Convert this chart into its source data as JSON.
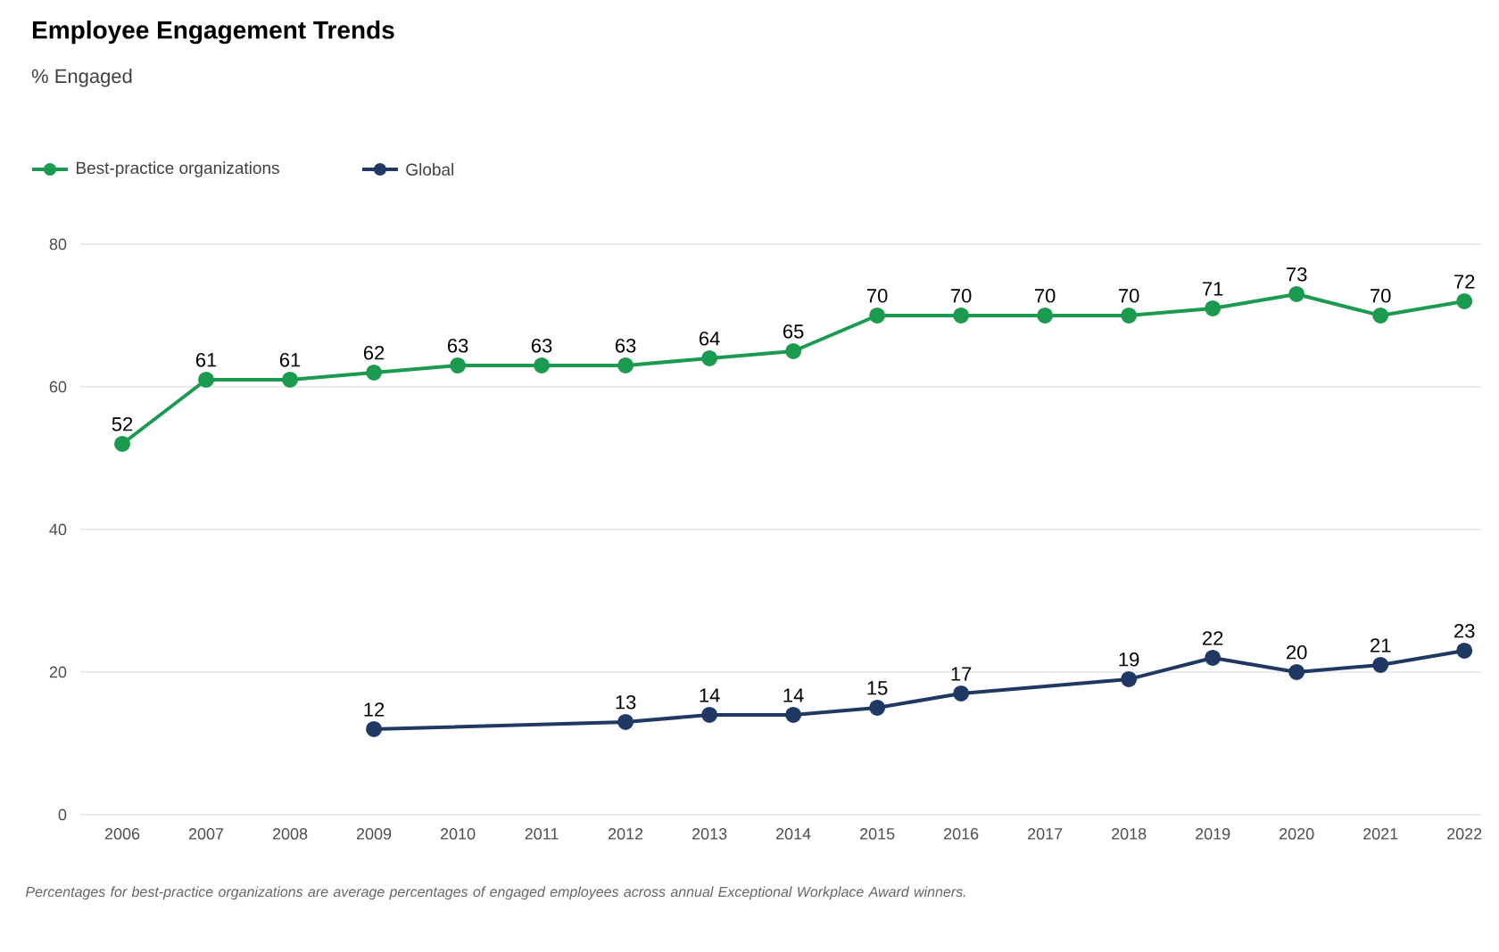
{
  "chart_data": {
    "type": "line",
    "title": "Employee Engagement Trends",
    "subtitle": "% Engaged",
    "x": [
      2006,
      2007,
      2008,
      2009,
      2010,
      2011,
      2012,
      2013,
      2014,
      2015,
      2016,
      2017,
      2018,
      2019,
      2020,
      2021,
      2022
    ],
    "series": [
      {
        "name": "Best-practice organizations",
        "color": "#1a9b4f",
        "values": [
          52,
          61,
          61,
          62,
          63,
          63,
          63,
          64,
          65,
          70,
          70,
          70,
          70,
          71,
          73,
          70,
          72
        ]
      },
      {
        "name": "Global",
        "color": "#1f3864",
        "x": [
          2009,
          2012,
          2013,
          2014,
          2015,
          2016,
          2018,
          2019,
          2020,
          2021,
          2022
        ],
        "values": [
          12,
          13,
          14,
          14,
          15,
          17,
          19,
          22,
          20,
          21,
          23
        ]
      }
    ],
    "xlim": [
      2005.5,
      2022.2
    ],
    "xticks": [
      2006,
      2007,
      2008,
      2009,
      2010,
      2011,
      2012,
      2013,
      2014,
      2015,
      2016,
      2017,
      2018,
      2019,
      2020,
      2021,
      2022
    ],
    "ylim": [
      0,
      80
    ],
    "yticks": [
      0,
      20,
      40,
      60,
      80
    ],
    "grid": "y",
    "legend": "top left",
    "marker": "circle",
    "line_style": "solid",
    "data_labels": true,
    "annotations": [
      "Percentages for best-practice organizations are average percentages of engaged employees across annual Exceptional Workplace Award winners."
    ]
  }
}
